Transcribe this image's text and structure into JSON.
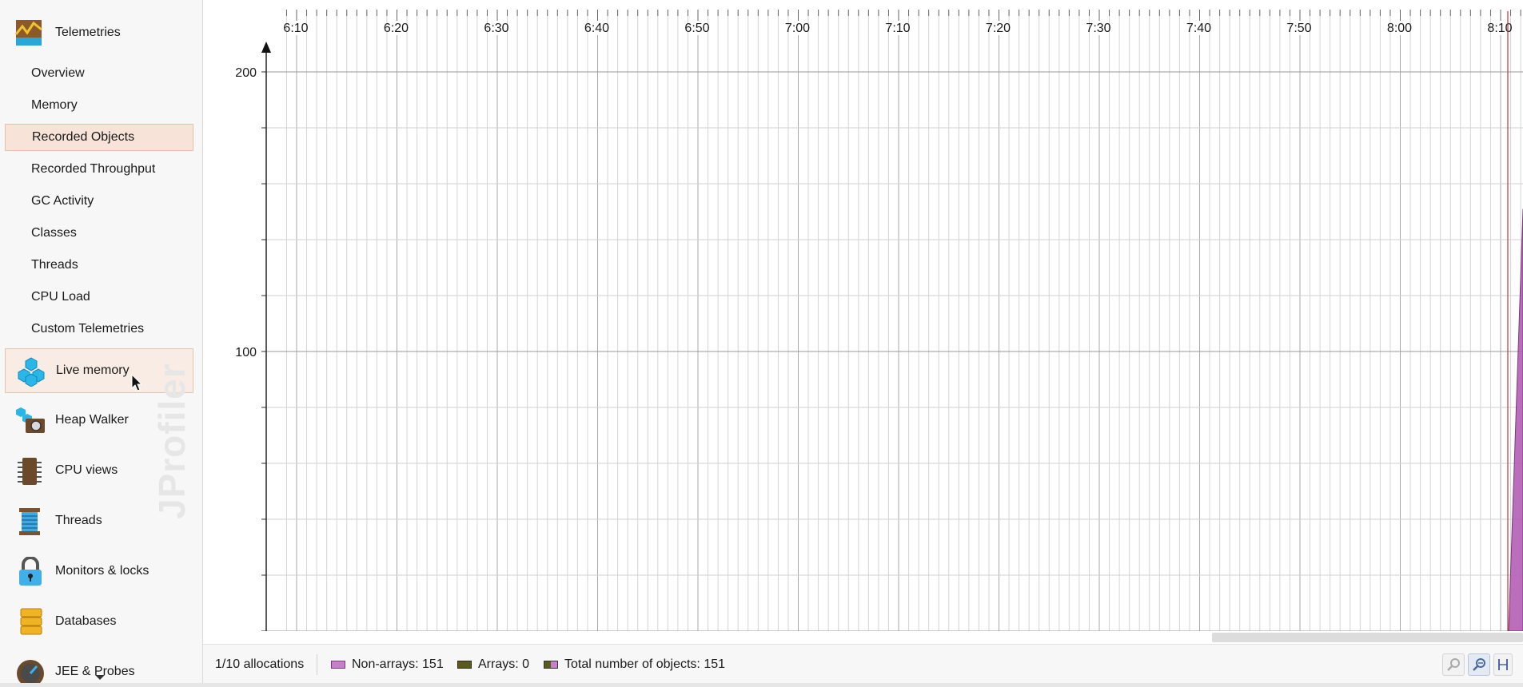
{
  "sidebar": {
    "telemetries_header": "Telemetries",
    "telemetry_items": [
      {
        "label": "Overview"
      },
      {
        "label": "Memory"
      },
      {
        "label": "Recorded Objects"
      },
      {
        "label": "Recorded Throughput"
      },
      {
        "label": "GC Activity"
      },
      {
        "label": "Classes"
      },
      {
        "label": "Threads"
      },
      {
        "label": "CPU Load"
      },
      {
        "label": "Custom Telemetries"
      }
    ],
    "selected_item": "Recorded Objects",
    "sections": [
      {
        "label": "Live memory",
        "icon": "live-memory-icon"
      },
      {
        "label": "Heap Walker",
        "icon": "heap-walker-icon"
      },
      {
        "label": "CPU views",
        "icon": "cpu-views-icon"
      },
      {
        "label": "Threads",
        "icon": "threads-icon"
      },
      {
        "label": "Monitors & locks",
        "icon": "lock-icon"
      },
      {
        "label": "Databases",
        "icon": "databases-icon"
      },
      {
        "label": "JEE & Probes",
        "icon": "gauge-icon"
      }
    ],
    "hovered_section": "Live memory",
    "watermark": "JProfiler"
  },
  "chart_data": {
    "type": "area",
    "x_tick_labels": [
      "6:10",
      "6:20",
      "6:30",
      "6:40",
      "6:50",
      "7:00",
      "7:10",
      "7:20",
      "7:30",
      "7:40",
      "7:50",
      "8:00",
      "8:10"
    ],
    "y_tick_labels": [
      "200",
      "100"
    ],
    "ylim": [
      0,
      200
    ],
    "grid": true,
    "series": [
      {
        "name": "Non-arrays",
        "color": "#b35eb5",
        "values": [
          151
        ]
      },
      {
        "name": "Arrays",
        "color": "#5a5a1e",
        "values": [
          0
        ]
      }
    ]
  },
  "status_bar": {
    "allocations": "1/10 allocations",
    "legend": [
      {
        "label": "Non-arrays: 151",
        "color": "#c77fcb"
      },
      {
        "label": "Arrays: 0",
        "color": "#5a5a1e"
      },
      {
        "label": "Total number of objects: 151",
        "color": "#c77fcb"
      }
    ],
    "tools": [
      "zoom-in-icon",
      "zoom-out-icon",
      "fit-icon"
    ]
  }
}
